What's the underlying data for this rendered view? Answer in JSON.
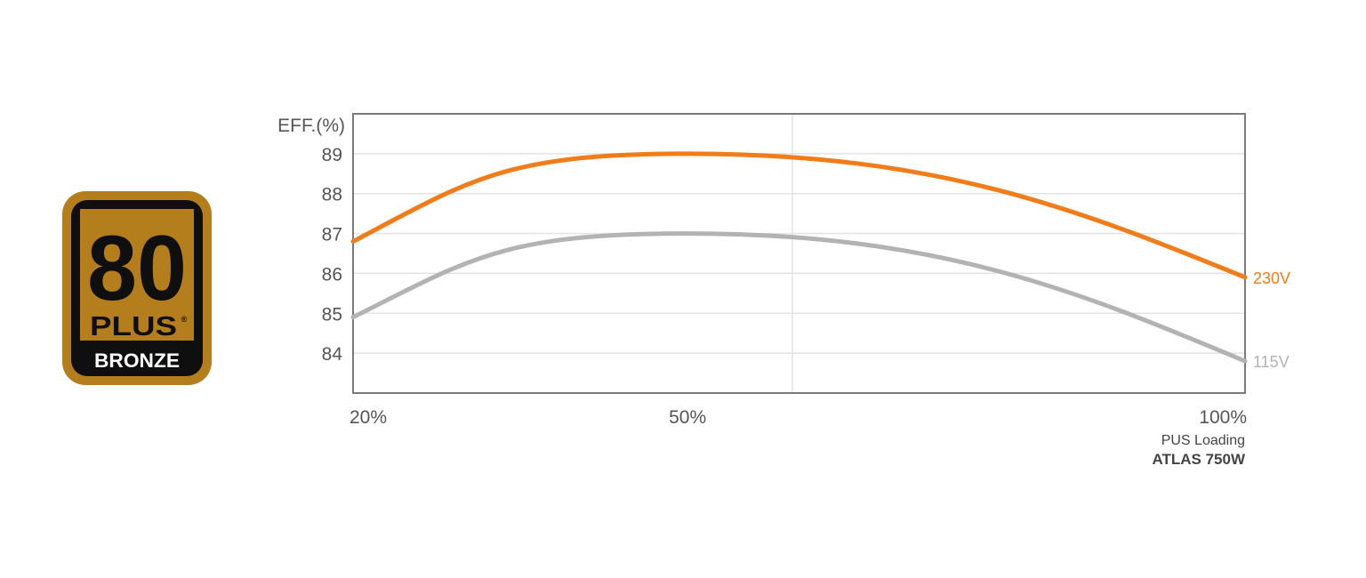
{
  "badge": {
    "number": "80",
    "word": "PLUS",
    "registered": "®",
    "tier": "BRONZE",
    "colors": {
      "frame": "#b47e1c",
      "inner": "#0f0f0f",
      "panel": "#b47e1c",
      "text_dark": "#0f0f0f",
      "text_light": "#ffffff"
    }
  },
  "chart_data": {
    "type": "line",
    "ylabel": "EFF.(%)",
    "xlabel": "PUS Loading",
    "model": "ATLAS 750W",
    "x_ticks": [
      "20%",
      "50%",
      "100%"
    ],
    "x": [
      20,
      50,
      100
    ],
    "ylim": [
      83,
      90
    ],
    "y_ticks": [
      84,
      85,
      86,
      87,
      88,
      89
    ],
    "grid": true,
    "series": [
      {
        "name": "230V",
        "color": "#f07c1a",
        "values": [
          86.8,
          89.0,
          85.9
        ]
      },
      {
        "name": "115V",
        "color": "#b3b3b3",
        "values": [
          84.9,
          87.0,
          83.8
        ]
      }
    ],
    "colors": {
      "axis": "#7a7a7a",
      "grid": "#e3e3e3",
      "tick_text": "#555555",
      "caption_text": "#444444"
    }
  }
}
